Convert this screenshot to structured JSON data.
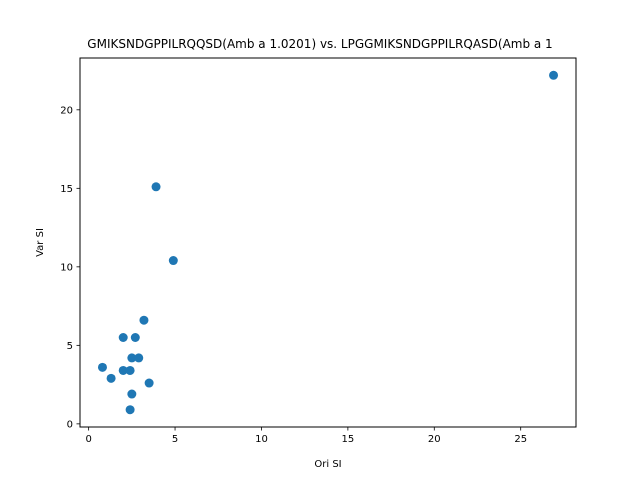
{
  "chart_data": {
    "type": "scatter",
    "title": "GMIKSNDGPPILRQQSD(Amb a 1.0201) vs. LPGGMIKSNDGPPILRQASD(Amb a 1",
    "xlabel": "Ori SI",
    "ylabel": "Var SI",
    "xlim": [
      -0.5,
      28.2
    ],
    "ylim": [
      -0.2,
      23.3
    ],
    "xticks": [
      0,
      5,
      10,
      15,
      20,
      25
    ],
    "yticks": [
      0,
      5,
      10,
      15,
      20
    ],
    "grid": false,
    "marker_color": "#1f77b4",
    "points": [
      {
        "x": 26.9,
        "y": 22.2
      },
      {
        "x": 3.9,
        "y": 15.1
      },
      {
        "x": 4.9,
        "y": 10.4
      },
      {
        "x": 3.2,
        "y": 6.6
      },
      {
        "x": 2.0,
        "y": 5.5
      },
      {
        "x": 2.7,
        "y": 5.5
      },
      {
        "x": 2.5,
        "y": 4.2
      },
      {
        "x": 2.9,
        "y": 4.2
      },
      {
        "x": 0.8,
        "y": 3.6
      },
      {
        "x": 2.0,
        "y": 3.4
      },
      {
        "x": 2.4,
        "y": 3.4
      },
      {
        "x": 1.3,
        "y": 2.9
      },
      {
        "x": 3.5,
        "y": 2.6
      },
      {
        "x": 2.5,
        "y": 1.9
      },
      {
        "x": 2.4,
        "y": 0.9
      }
    ]
  }
}
